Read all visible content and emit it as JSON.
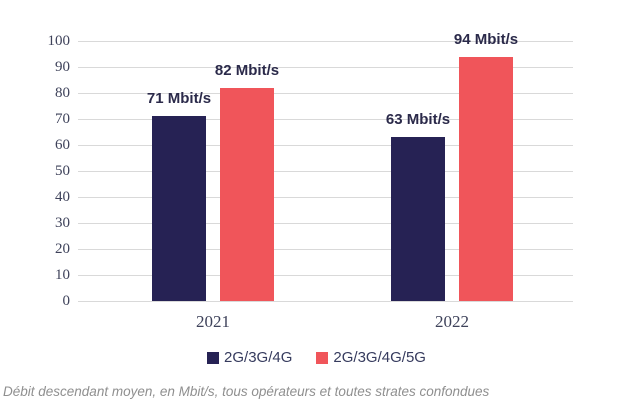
{
  "chart_data": {
    "type": "bar",
    "categories": [
      "2021",
      "2022"
    ],
    "series": [
      {
        "name": "2G/3G/4G",
        "color": "#262254",
        "values": [
          71,
          63
        ],
        "labels": [
          "71 Mbit/s",
          "63 Mbit/s"
        ]
      },
      {
        "name": "2G/3G/4G/5G",
        "color": "#f0555a",
        "values": [
          82,
          94
        ],
        "labels": [
          "82 Mbit/s",
          "94 Mbit/s"
        ]
      }
    ],
    "title": "",
    "xlabel": "",
    "ylabel": "",
    "ylim": [
      0,
      100
    ],
    "ytick_step": 10,
    "yticks": [
      0,
      10,
      20,
      30,
      40,
      50,
      60,
      70,
      80,
      90,
      100
    ],
    "grid": "horizontal",
    "legend_position": "bottom"
  },
  "caption": "Débit descendant moyen, en Mbit/s, tous opérateurs et toutes strates confondues",
  "colors": {
    "grid": "#d9d9d9",
    "axis_text": "#3e425a",
    "data_label": "#2b2a4a",
    "legend_text": "#363b5e",
    "caption_text": "#8f8f8f",
    "background": "#ffffff"
  }
}
